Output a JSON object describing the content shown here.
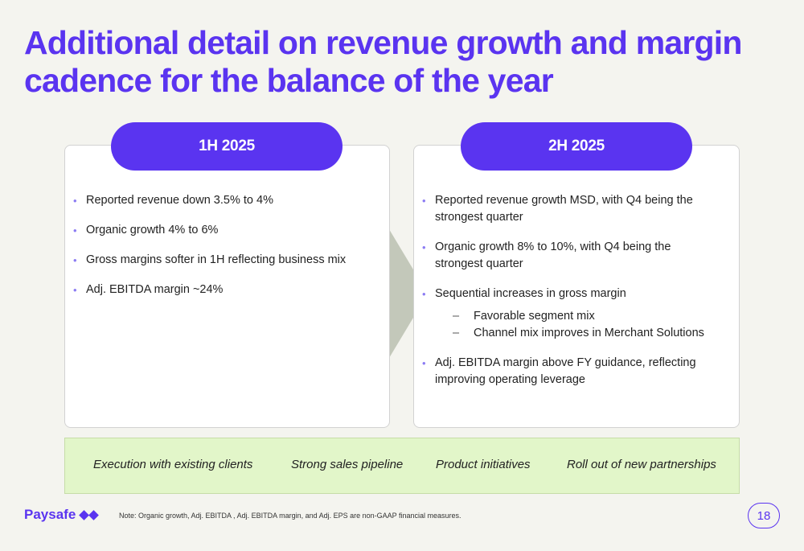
{
  "title": "Additional detail on revenue growth and margin cadence for the balance of the year",
  "left_card": {
    "header": "1H 2025",
    "bullets": [
      "Reported revenue down 3.5% to 4%",
      "Organic growth 4% to 6%",
      "Gross margins softer in 1H reflecting business mix",
      "Adj. EBITDA margin ~24%"
    ]
  },
  "right_card": {
    "header": "2H 2025",
    "bullets": [
      "Reported revenue growth MSD, with Q4 being the strongest quarter",
      "Organic growth 8% to 10%, with Q4 being the strongest quarter",
      "Sequential increases in gross margin",
      "Adj. EBITDA margin above FY guidance, reflecting improving operating leverage"
    ],
    "sub_bullets": [
      "Favorable segment mix",
      "Channel mix improves in Merchant Solutions"
    ]
  },
  "banner": {
    "items": [
      "Execution with existing clients",
      "Strong sales pipeline",
      "Product initiatives",
      "Roll out of new partnerships"
    ]
  },
  "footer": {
    "logo_text": "Paysafe",
    "note": "Note: Organic growth, Adj. EBITDA , Adj. EBITDA margin, and Adj. EPS are non-GAAP financial measures.",
    "page_number": "18"
  },
  "colors": {
    "accent": "#5a34f0",
    "banner_bg": "#e2f6c9",
    "arrow": "#c3c8ba",
    "background": "#f4f4ef"
  }
}
